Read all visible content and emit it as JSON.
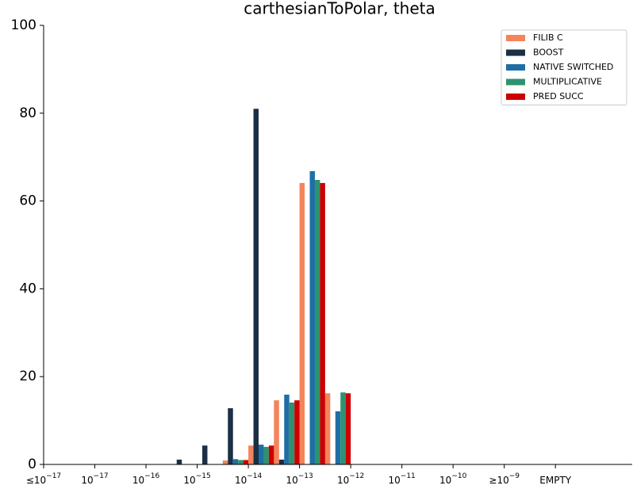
{
  "chart_data": {
    "type": "bar",
    "title": "carthesianToPolar, theta",
    "categories": [
      {
        "base": "≤10",
        "exp": "−17"
      },
      null,
      {
        "base": "10",
        "exp": "−17"
      },
      null,
      {
        "base": "10",
        "exp": "−16"
      },
      null,
      {
        "base": "10",
        "exp": "−15"
      },
      null,
      {
        "base": "10",
        "exp": "−14"
      },
      null,
      {
        "base": "10",
        "exp": "−13"
      },
      null,
      {
        "base": "10",
        "exp": "−12"
      },
      null,
      {
        "base": "10",
        "exp": "−11"
      },
      null,
      {
        "base": "10",
        "exp": "−10"
      },
      null,
      {
        "base": "≥10",
        "exp": "−9"
      },
      null,
      {
        "base": "EMPTY"
      },
      null,
      null
    ],
    "series": [
      {
        "name": "FILIB C",
        "color": "#f4845a",
        "values": [
          0,
          0,
          0,
          0,
          0,
          0,
          0,
          0.9,
          4.3,
          14.6,
          64.1,
          16.2,
          0,
          0,
          0,
          0,
          0,
          0,
          0,
          0,
          0,
          0,
          0
        ]
      },
      {
        "name": "BOOST",
        "color": "#1b2f45",
        "values": [
          0,
          0,
          0,
          0,
          0,
          1.1,
          4.3,
          12.8,
          81.0,
          1.1,
          0,
          0,
          0,
          0,
          0,
          0,
          0,
          0,
          0,
          0,
          0,
          0,
          0
        ]
      },
      {
        "name": "NATIVE SWITCHED",
        "color": "#1f6fa5",
        "values": [
          0,
          0,
          0,
          0,
          0,
          0,
          0,
          1.2,
          4.5,
          15.9,
          66.8,
          12.1,
          0,
          0,
          0,
          0,
          0,
          0,
          0,
          0,
          0,
          0,
          0
        ]
      },
      {
        "name": "MULTIPLICATIVE",
        "color": "#2e9270",
        "values": [
          0,
          0,
          0,
          0,
          0,
          0,
          0,
          1.0,
          4.0,
          14.1,
          64.8,
          16.4,
          0,
          0,
          0,
          0,
          0,
          0,
          0,
          0,
          0,
          0,
          0
        ]
      },
      {
        "name": "PRED SUCC",
        "color": "#cc0000",
        "values": [
          0,
          0,
          0,
          0,
          0,
          0,
          0,
          1.0,
          4.3,
          14.6,
          64.1,
          16.2,
          0,
          0,
          0,
          0,
          0,
          0,
          0,
          0,
          0,
          0,
          0
        ]
      }
    ],
    "ylim": [
      0,
      100
    ],
    "yticks": [
      0,
      20,
      40,
      60,
      80,
      100
    ],
    "legend": "upper right"
  }
}
